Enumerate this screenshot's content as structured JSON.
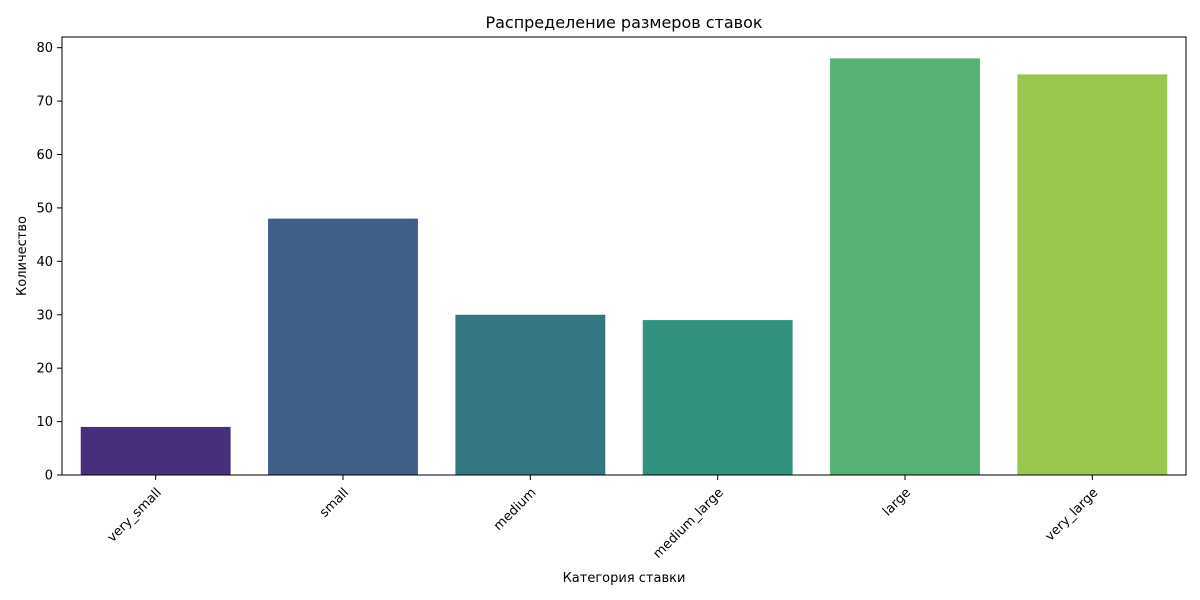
{
  "chart_data": {
    "type": "bar",
    "title": "Распределение размеров ставок",
    "xlabel": "Категория ставки",
    "ylabel": "Количество",
    "categories": [
      "very_small",
      "small",
      "medium",
      "medium_large",
      "large",
      "very_large"
    ],
    "values": [
      9,
      48,
      30,
      29,
      78,
      75
    ],
    "colors": [
      "#472f7d",
      "#3f5e88",
      "#337782",
      "#31907e",
      "#58b174",
      "#9ac74d"
    ],
    "ylim": [
      0,
      82
    ],
    "yticks": [
      0,
      10,
      20,
      30,
      40,
      50,
      60,
      70,
      80
    ],
    "grid": false,
    "legend": "none"
  }
}
